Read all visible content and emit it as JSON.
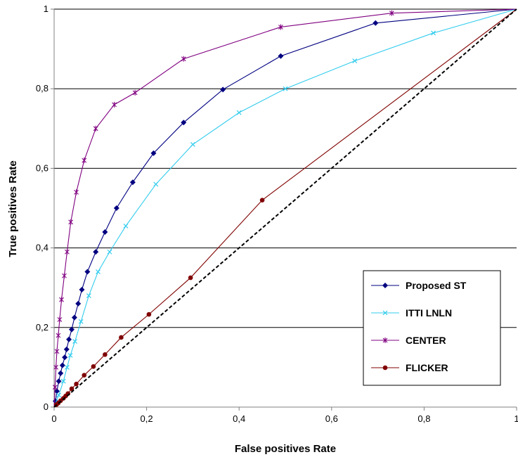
{
  "chart_data": {
    "type": "line",
    "title": "",
    "xlabel": "False positives Rate",
    "ylabel": "True positives Rate",
    "xlim": [
      0,
      1
    ],
    "ylim": [
      0,
      1
    ],
    "x_ticks": [
      0,
      0.2,
      0.4,
      0.6,
      0.8,
      1
    ],
    "y_ticks": [
      0,
      0.2,
      0.4,
      0.6,
      0.8,
      1
    ],
    "x_tick_labels": [
      "0",
      "0,2",
      "0,4",
      "0,6",
      "0,8",
      "1"
    ],
    "y_tick_labels": [
      "0",
      "0,2",
      "0,4",
      "0,6",
      "0,8",
      "1"
    ],
    "grid": "horizontal",
    "legend_position": "bottom-right",
    "series": [
      {
        "name": "Proposed ST",
        "color": "#000080",
        "marker": "diamond",
        "points": [
          [
            0,
            0
          ],
          [
            0.003,
            0.015
          ],
          [
            0.006,
            0.04
          ],
          [
            0.01,
            0.065
          ],
          [
            0.014,
            0.085
          ],
          [
            0.018,
            0.105
          ],
          [
            0.023,
            0.125
          ],
          [
            0.027,
            0.145
          ],
          [
            0.032,
            0.17
          ],
          [
            0.038,
            0.195
          ],
          [
            0.044,
            0.225
          ],
          [
            0.052,
            0.26
          ],
          [
            0.06,
            0.295
          ],
          [
            0.072,
            0.34
          ],
          [
            0.09,
            0.39
          ],
          [
            0.11,
            0.44
          ],
          [
            0.135,
            0.5
          ],
          [
            0.17,
            0.565
          ],
          [
            0.215,
            0.638
          ],
          [
            0.28,
            0.715
          ],
          [
            0.365,
            0.798
          ],
          [
            0.49,
            0.882
          ],
          [
            0.695,
            0.965
          ],
          [
            1,
            1
          ]
        ]
      },
      {
        "name": "ITTI LNLN",
        "color": "#33CCEE",
        "marker": "x",
        "points": [
          [
            0,
            0
          ],
          [
            0.01,
            0.03
          ],
          [
            0.02,
            0.065
          ],
          [
            0.028,
            0.1
          ],
          [
            0.035,
            0.13
          ],
          [
            0.045,
            0.165
          ],
          [
            0.058,
            0.215
          ],
          [
            0.075,
            0.28
          ],
          [
            0.095,
            0.34
          ],
          [
            0.12,
            0.39
          ],
          [
            0.155,
            0.455
          ],
          [
            0.22,
            0.56
          ],
          [
            0.3,
            0.66
          ],
          [
            0.4,
            0.74
          ],
          [
            0.5,
            0.8
          ],
          [
            0.65,
            0.87
          ],
          [
            0.82,
            0.94
          ],
          [
            1,
            1
          ]
        ]
      },
      {
        "name": "CENTER",
        "color": "#800080",
        "marker": "star",
        "points": [
          [
            0,
            0
          ],
          [
            0.002,
            0.05
          ],
          [
            0.004,
            0.1
          ],
          [
            0.006,
            0.14
          ],
          [
            0.009,
            0.18
          ],
          [
            0.012,
            0.22
          ],
          [
            0.016,
            0.27
          ],
          [
            0.022,
            0.33
          ],
          [
            0.028,
            0.39
          ],
          [
            0.036,
            0.465
          ],
          [
            0.048,
            0.54
          ],
          [
            0.065,
            0.62
          ],
          [
            0.09,
            0.7
          ],
          [
            0.13,
            0.76
          ],
          [
            0.175,
            0.79
          ],
          [
            0.28,
            0.875
          ],
          [
            0.49,
            0.955
          ],
          [
            0.73,
            0.99
          ],
          [
            1,
            1
          ]
        ]
      },
      {
        "name": "FLICKER",
        "color": "#800000",
        "marker": "circle",
        "points": [
          [
            0,
            0
          ],
          [
            0.005,
            0.006
          ],
          [
            0.009,
            0.01
          ],
          [
            0.014,
            0.016
          ],
          [
            0.02,
            0.022
          ],
          [
            0.025,
            0.028
          ],
          [
            0.03,
            0.034
          ],
          [
            0.038,
            0.046
          ],
          [
            0.048,
            0.058
          ],
          [
            0.065,
            0.08
          ],
          [
            0.085,
            0.102
          ],
          [
            0.11,
            0.132
          ],
          [
            0.145,
            0.175
          ],
          [
            0.205,
            0.233
          ],
          [
            0.295,
            0.325
          ],
          [
            0.45,
            0.52
          ],
          [
            1,
            1
          ]
        ]
      },
      {
        "name": "",
        "color": "#000000",
        "marker": "none",
        "dashed": true,
        "points": [
          [
            0,
            0
          ],
          [
            1,
            1
          ]
        ]
      }
    ]
  }
}
